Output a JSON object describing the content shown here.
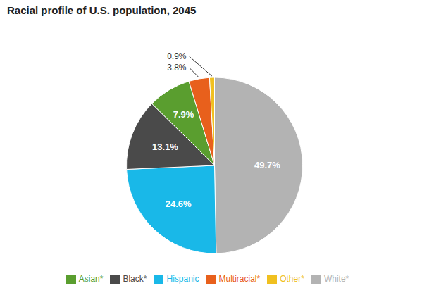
{
  "chart_data": {
    "type": "pie",
    "title": "Racial profile of U.S. population, 2045",
    "categories": [
      "White*",
      "Hispanic",
      "Black*",
      "Asian*",
      "Multiracial*",
      "Other*"
    ],
    "values": [
      49.7,
      24.6,
      13.1,
      7.9,
      3.8,
      0.9
    ],
    "value_labels": [
      "49.7%",
      "24.6%",
      "13.1%",
      "7.9%",
      "3.8%",
      "0.9%"
    ],
    "colors": [
      "#b3b3b3",
      "#19b8e8",
      "#4a4a4a",
      "#5a9e2f",
      "#e8601c",
      "#f0c020"
    ],
    "data_labels": true,
    "legend": "bottom"
  }
}
